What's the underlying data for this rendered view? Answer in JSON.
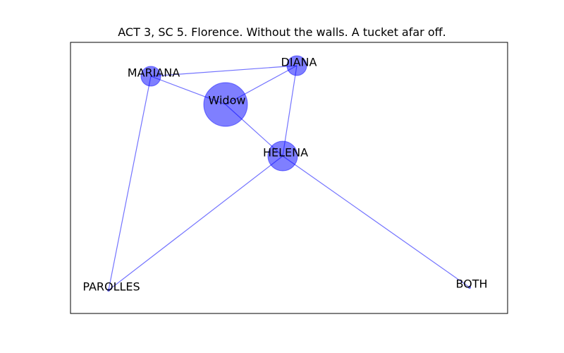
{
  "diagram": {
    "title": "ACT 3, SC 5. Florence. Without the walls. A tucket afar off.",
    "node_color": "#0000ff",
    "edge_color": "#0000ff",
    "nodes": [
      {
        "id": "widow",
        "label": "Widow"
      },
      {
        "id": "diana",
        "label": "DIANA"
      },
      {
        "id": "mariana",
        "label": "MARIANA"
      },
      {
        "id": "helena",
        "label": "HELENA"
      },
      {
        "id": "parolles",
        "label": "PAROLLES"
      },
      {
        "id": "both",
        "label": "BOTH"
      }
    ],
    "edges": [
      {
        "from": "mariana",
        "to": "diana"
      },
      {
        "from": "mariana",
        "to": "widow"
      },
      {
        "from": "mariana",
        "to": "parolles"
      },
      {
        "from": "widow",
        "to": "diana"
      },
      {
        "from": "widow",
        "to": "helena"
      },
      {
        "from": "diana",
        "to": "helena"
      },
      {
        "from": "helena",
        "to": "parolles"
      },
      {
        "from": "helena",
        "to": "both"
      }
    ]
  }
}
